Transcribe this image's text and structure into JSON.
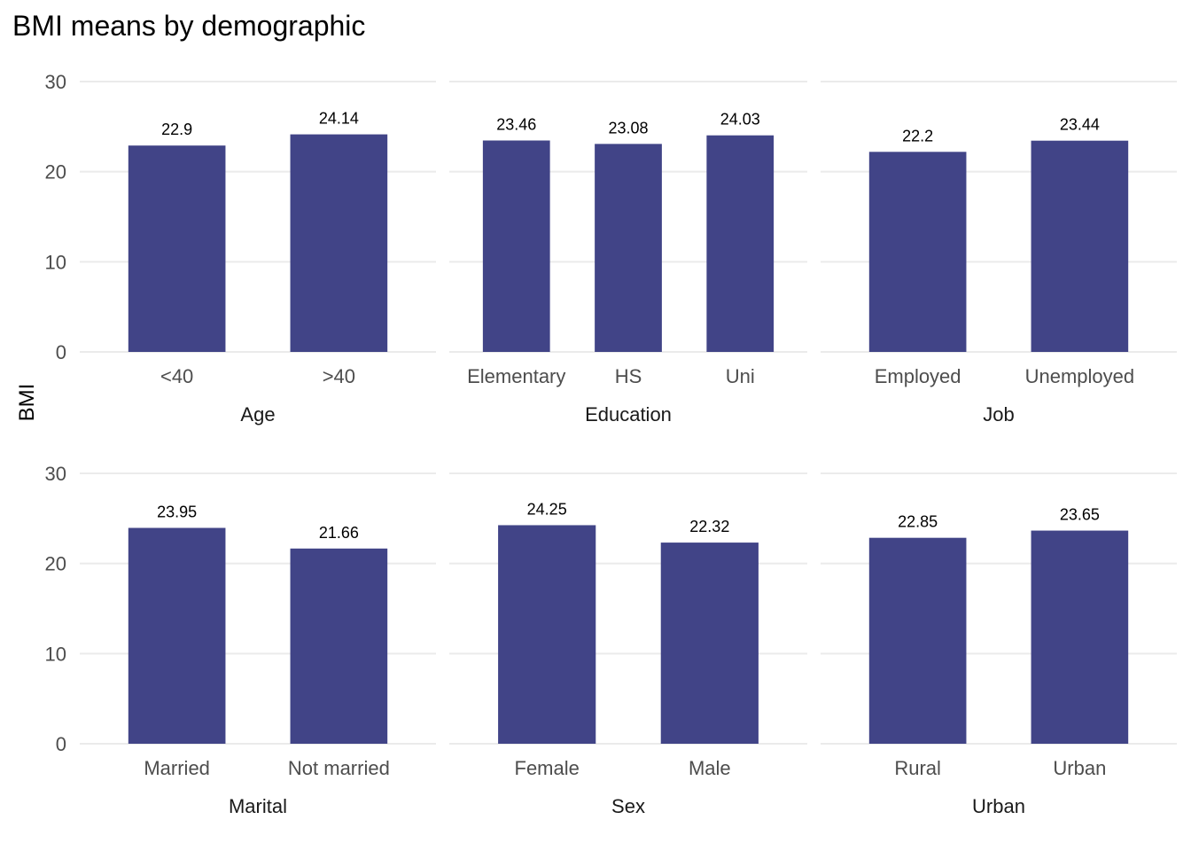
{
  "chart_data": {
    "type": "bar",
    "title": "BMI means by demographic",
    "ylabel": "BMI",
    "ylim": [
      0,
      30
    ],
    "yticks": [
      0,
      10,
      20,
      30
    ],
    "grid": true,
    "bar_color": "#414487",
    "facets": [
      {
        "name": "Age",
        "categories": [
          "<40",
          ">40"
        ],
        "values": [
          22.9,
          24.14
        ],
        "labels": [
          "22.9",
          "24.14"
        ]
      },
      {
        "name": "Education",
        "categories": [
          "Elementary",
          "HS",
          "Uni"
        ],
        "values": [
          23.46,
          23.08,
          24.03
        ],
        "labels": [
          "23.46",
          "23.08",
          "24.03"
        ]
      },
      {
        "name": "Job",
        "categories": [
          "Employed",
          "Unemployed"
        ],
        "values": [
          22.2,
          23.44
        ],
        "labels": [
          "22.2",
          "23.44"
        ]
      },
      {
        "name": "Marital",
        "categories": [
          "Married",
          "Not married"
        ],
        "values": [
          23.95,
          21.66
        ],
        "labels": [
          "23.95",
          "21.66"
        ]
      },
      {
        "name": "Sex",
        "categories": [
          "Female",
          "Male"
        ],
        "values": [
          24.25,
          22.32
        ],
        "labels": [
          "24.25",
          "22.32"
        ]
      },
      {
        "name": "Urban",
        "categories": [
          "Rural",
          "Urban"
        ],
        "values": [
          22.85,
          23.65
        ],
        "labels": [
          "22.85",
          "23.65"
        ]
      }
    ]
  }
}
